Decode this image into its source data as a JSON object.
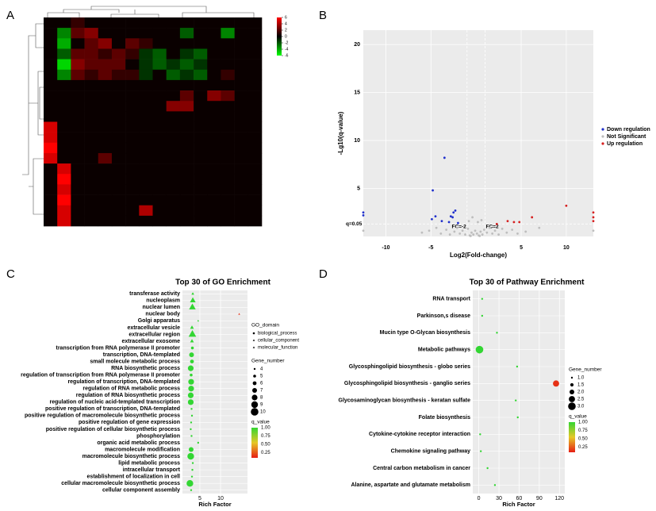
{
  "chart_data": [
    {
      "type": "heatmap",
      "panel_label": "A",
      "clim": [
        -6,
        6
      ],
      "colorbar_ticks": [
        6,
        4,
        2,
        0,
        -2,
        -4,
        -6
      ],
      "values": [
        [
          0,
          0,
          1,
          0,
          0,
          0,
          0,
          0,
          0,
          0,
          0,
          0,
          0,
          0,
          0,
          0
        ],
        [
          0,
          -3,
          2,
          3,
          0,
          0,
          0,
          0,
          0,
          0,
          -2,
          0,
          0,
          -3,
          0,
          0
        ],
        [
          0,
          -4,
          0,
          2,
          3,
          0,
          2,
          1,
          0,
          0,
          0,
          0,
          0,
          0,
          0,
          0
        ],
        [
          0,
          -2,
          2,
          2,
          1,
          2,
          1,
          -1,
          -2,
          0,
          -1,
          -2,
          0,
          0,
          0,
          0
        ],
        [
          0,
          -5,
          3,
          2,
          2,
          2,
          0,
          -1,
          -2,
          -1,
          -2,
          -1,
          0,
          0,
          0,
          0
        ],
        [
          0,
          -3,
          2,
          1,
          2,
          1,
          1,
          -1,
          0,
          -2,
          -1,
          -2,
          0,
          1,
          0,
          0
        ],
        [
          0,
          0,
          0,
          0,
          0,
          0,
          0,
          0,
          0,
          0,
          0,
          0,
          0,
          0,
          0,
          0
        ],
        [
          0,
          0,
          0,
          0,
          0,
          0,
          0,
          0,
          0,
          0,
          2,
          0,
          3,
          2,
          0,
          0
        ],
        [
          0,
          0,
          0,
          0,
          0,
          0,
          0,
          0,
          0,
          3,
          3,
          0,
          0,
          0,
          0,
          0
        ],
        [
          0,
          0,
          0,
          0,
          0,
          0,
          0,
          0,
          0,
          0,
          0,
          0,
          0,
          0,
          0,
          0
        ],
        [
          5,
          0,
          0,
          0,
          0,
          0,
          0,
          0,
          0,
          0,
          0,
          0,
          0,
          0,
          0,
          0
        ],
        [
          5,
          0,
          0,
          0,
          0,
          0,
          0,
          0,
          0,
          0,
          0,
          0,
          0,
          0,
          0,
          0
        ],
        [
          6,
          0,
          0,
          0,
          0,
          0,
          0,
          0,
          0,
          0,
          0,
          0,
          0,
          0,
          0,
          0
        ],
        [
          5,
          0,
          0,
          0,
          2,
          0,
          0,
          0,
          0,
          0,
          0,
          0,
          0,
          0,
          0,
          0
        ],
        [
          0,
          5,
          0,
          0,
          0,
          0,
          0,
          0,
          0,
          0,
          0,
          0,
          0,
          0,
          0,
          0
        ],
        [
          0,
          6,
          0,
          0,
          0,
          0,
          0,
          0,
          0,
          0,
          0,
          0,
          0,
          0,
          0,
          0
        ],
        [
          0,
          5,
          0,
          0,
          0,
          0,
          0,
          0,
          0,
          0,
          0,
          0,
          0,
          0,
          0,
          0
        ],
        [
          0,
          6,
          0,
          0,
          0,
          0,
          0,
          0,
          0,
          0,
          0,
          0,
          0,
          0,
          0,
          0
        ],
        [
          0,
          5,
          0,
          0,
          0,
          0,
          0,
          4,
          0,
          0,
          0,
          0,
          0,
          0,
          0,
          0
        ],
        [
          0,
          5,
          0,
          0,
          0,
          0,
          0,
          0,
          0,
          0,
          0,
          0,
          0,
          0,
          0,
          0
        ]
      ]
    },
    {
      "type": "scatter",
      "panel_label": "B",
      "x_label": "Log2(Fold-change)",
      "y_label": "-Lg10(q-value)",
      "xlim": [
        -12.5,
        13
      ],
      "ylim": [
        0,
        21.5
      ],
      "xticks": [
        -10,
        -5,
        5,
        10
      ],
      "yticks": [
        5,
        10,
        15,
        20
      ],
      "grid": true,
      "fc_thresholds": [
        -1,
        1
      ],
      "q_threshold": 1.3,
      "threshold_labels": [
        "FC=-2",
        "FC=2",
        "q=0.05"
      ],
      "series": [
        {
          "name": "Down regulation",
          "color": "#1f2fcc",
          "x": [
            -4.8,
            -3.5,
            -4.9,
            -4.5,
            -3.8,
            -3.0,
            -2.6,
            -2.5,
            -2.3,
            -2.8,
            -2.0,
            -12.5,
            -12.5
          ],
          "values": [
            4.8,
            8.2,
            1.8,
            2.1,
            1.6,
            1.5,
            2.0,
            2.5,
            2.7,
            2.1,
            1.4,
            2.5,
            2.2
          ]
        },
        {
          "name": "Not Significant",
          "color": "#bdbdbd",
          "x": [
            -6,
            -5.2,
            -4.4,
            -3.9,
            -3.3,
            -2.9,
            -2.4,
            -2.1,
            -1.8,
            -1.5,
            -1.2,
            -0.9,
            -0.7,
            -0.5,
            -0.3,
            -0.1,
            0.1,
            0.3,
            0.5,
            0.7,
            0.9,
            1.2,
            1.5,
            1.8,
            2.1,
            2.5,
            2.9,
            3.4,
            4.0,
            4.6,
            5.5,
            7.0,
            -0.8,
            -0.4,
            0.2,
            0.6,
            -0.6,
            0.4,
            -12.5,
            13
          ],
          "values": [
            0.4,
            0.6,
            0.9,
            0.3,
            0.7,
            0.2,
            0.5,
            0.9,
            0.3,
            0.6,
            0.2,
            0.8,
            0.1,
            0.4,
            0.2,
            0.6,
            0.3,
            0.1,
            0.5,
            0.2,
            0.7,
            0.4,
            0.9,
            0.3,
            0.6,
            0.2,
            0.8,
            0.4,
            0.7,
            0.3,
            0.5,
            0.9,
            1.6,
            2.0,
            1.5,
            1.7,
            0.05,
            0.05,
            0.6,
            0.6
          ]
        },
        {
          "name": "Up regulation",
          "color": "#d62020",
          "x": [
            2.3,
            3.5,
            4.2,
            4.8,
            6.2,
            10,
            13,
            13,
            13
          ],
          "values": [
            1.3,
            1.6,
            1.5,
            1.5,
            2.0,
            3.2,
            2.5,
            2.0,
            1.6
          ]
        }
      ],
      "legend": "right"
    },
    {
      "type": "bubble",
      "panel_label": "C",
      "title": "Top 30 of GO Enrichment",
      "x_label": "Rich Factor",
      "xlim": [
        0.8,
        16.5
      ],
      "xticks": [
        5,
        10
      ],
      "grid": true,
      "categories": [
        "transferase activity",
        "nucleoplasm",
        "nuclear lumen",
        "nuclear body",
        "Golgi apparatus",
        "extracellular vesicle",
        "extracellular region",
        "extracellular exosome",
        "transcription from RNA polymerase II promoter",
        "transcription, DNA-templated",
        "small molecule metabolic process",
        "RNA biosynthetic process",
        "regulation of transcription from RNA polymerase II promoter",
        "regulation of transcription, DNA-templated",
        "regulation of RNA metabolic process",
        "regulation of RNA biosynthetic process",
        "regulation of nucleic acid-templated transcription",
        "positive regulation of transcription, DNA-templated",
        "positive regulation of macromolecule biosynthetic process",
        "positive regulation of gene expression",
        "positive regulation of cellular biosynthetic process",
        "phosphorylation",
        "organic acid metabolic process",
        "macromolecule modification",
        "macromolecule biosynthetic process",
        "lipid metabolic process",
        "intracellular transport",
        "establishment of localization in cell",
        "cellular macromolecule biosynthetic process",
        "cellular component assembly"
      ],
      "values": [
        3.3,
        3.3,
        3.2,
        14.5,
        4.6,
        3.1,
        3.2,
        3.1,
        3.2,
        3.0,
        3.1,
        2.8,
        2.9,
        2.9,
        2.9,
        2.8,
        2.8,
        3.0,
        3.1,
        2.9,
        2.8,
        3.0,
        4.6,
        2.9,
        2.8,
        3.3,
        3.2,
        3.1,
        2.6,
        2.9
      ],
      "sizes": [
        5,
        8,
        9,
        4,
        4,
        6,
        10,
        6,
        5,
        7,
        6,
        8,
        5,
        8,
        8,
        8,
        8,
        4,
        4,
        4,
        4,
        4,
        4,
        7,
        9,
        4,
        4,
        4,
        9,
        4
      ],
      "q_values": [
        1,
        1,
        1,
        0.15,
        1,
        1,
        1,
        1,
        1,
        1,
        1,
        1,
        1,
        1,
        1,
        1,
        1,
        1,
        1,
        1,
        1,
        1,
        1,
        1,
        1,
        1,
        1,
        1,
        1,
        1
      ],
      "domain": [
        "molecular_function",
        "cellular_component",
        "cellular_component",
        "cellular_component",
        "cellular_component",
        "cellular_component",
        "cellular_component",
        "cellular_component",
        "biological_process",
        "biological_process",
        "biological_process",
        "biological_process",
        "biological_process",
        "biological_process",
        "biological_process",
        "biological_process",
        "biological_process",
        "biological_process",
        "biological_process",
        "biological_process",
        "biological_process",
        "biological_process",
        "biological_process",
        "biological_process",
        "biological_process",
        "biological_process",
        "biological_process",
        "biological_process",
        "biological_process",
        "biological_process"
      ],
      "domain_title": "GO_domain",
      "domains": [
        "biological_process",
        "cellular_component",
        "molecular_function"
      ],
      "domain_shapes": [
        "circle",
        "triangle",
        "triangle"
      ],
      "size_title": "Gene_number",
      "size_ticks": [
        4,
        5,
        6,
        7,
        8,
        9,
        10
      ],
      "q_title": "q_value",
      "q_lim": [
        0.1,
        1
      ],
      "q_ticks": [
        {
          "value": 1,
          "label": "1.00"
        },
        0.75,
        {
          "value": 0.5,
          "label": "0.50"
        },
        0.25
      ]
    },
    {
      "type": "bubble",
      "panel_label": "D",
      "title": "Top 30 of Pathway Enrichment",
      "x_label": "Rich Factor",
      "xlim": [
        -9,
        128
      ],
      "xticks": [
        0,
        30,
        60,
        90,
        120
      ],
      "grid": true,
      "categories": [
        "RNA transport",
        "Parkinson,s disease",
        "Mucin type O-Glycan biosynthesis",
        "Metabolic pathways",
        "Glycosphingolipid biosynthesis - globo series",
        "Glycosphingolipid biosynthesis - ganglio series",
        "Glycosaminoglycan biosynthesis - keratan sulfate",
        "Folate biosynthesis",
        "Cytokine-cytokine receptor interaction",
        "Chemokine signaling pathway",
        "Central carbon metabolism in cancer",
        "Alanine, aspartate and glutamate metabolism"
      ],
      "values": [
        5,
        5,
        27,
        1,
        57,
        115,
        55,
        58,
        2,
        3,
        13,
        24
      ],
      "sizes": [
        1,
        1,
        1,
        3,
        1,
        2.5,
        1,
        1,
        1,
        1,
        1,
        1
      ],
      "q_values": [
        1,
        1,
        1,
        1,
        1,
        0.15,
        1,
        1,
        1,
        1,
        1,
        1
      ],
      "size_title": "Gene_number",
      "size_ticks": [
        {
          "value": 1,
          "label": "1.0"
        },
        1.5,
        {
          "value": 2,
          "label": "2.0"
        },
        2.5,
        {
          "value": 3,
          "label": "3.0"
        }
      ],
      "q_title": "q_value",
      "q_lim": [
        0.1,
        1
      ],
      "q_ticks": [
        {
          "value": 1,
          "label": "1.00"
        },
        0.75,
        {
          "value": 0.5,
          "label": "0.50"
        },
        0.25
      ]
    }
  ]
}
